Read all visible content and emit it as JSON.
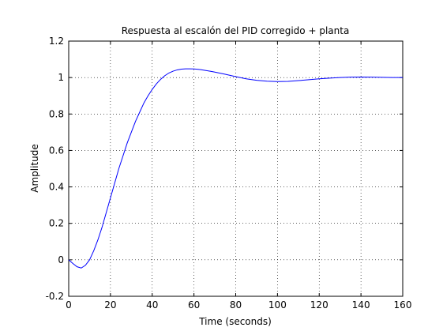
{
  "chart_data": {
    "type": "line",
    "title": "Respuesta al escalón del PID corregido + planta",
    "xlabel": "Time (seconds)",
    "ylabel": "Amplitude",
    "xlim": [
      0,
      160
    ],
    "ylim": [
      -0.2,
      1.2
    ],
    "grid": true,
    "grid_style": "dotted",
    "x_ticks": [
      "0",
      "20",
      "40",
      "60",
      "80",
      "100",
      "120",
      "140",
      "160"
    ],
    "y_ticks": [
      "-0.2",
      "0",
      "0.2",
      "0.4",
      "0.6",
      "0.8",
      "1",
      "1.2"
    ],
    "line_color": "#0000ff",
    "series": [
      {
        "x": [
          0,
          2,
          4,
          6,
          8,
          10,
          12,
          14,
          16,
          18,
          20,
          22,
          24,
          26,
          28,
          30,
          32,
          34,
          36,
          38,
          40,
          42,
          44,
          46,
          48,
          50,
          52,
          54,
          56,
          58,
          60,
          62,
          64,
          66,
          68,
          70,
          75,
          80,
          85,
          90,
          95,
          100,
          105,
          110,
          115,
          120,
          125,
          130,
          135,
          140,
          145,
          150,
          155,
          160
        ],
        "y": [
          0,
          -0.02,
          -0.038,
          -0.045,
          -0.03,
          0.0,
          0.05,
          0.11,
          0.18,
          0.26,
          0.34,
          0.42,
          0.5,
          0.57,
          0.64,
          0.7,
          0.76,
          0.81,
          0.86,
          0.9,
          0.935,
          0.965,
          0.99,
          1.01,
          1.025,
          1.035,
          1.042,
          1.046,
          1.048,
          1.048,
          1.047,
          1.045,
          1.042,
          1.038,
          1.034,
          1.03,
          1.018,
          1.005,
          0.993,
          0.985,
          0.98,
          0.978,
          0.979,
          0.983,
          0.988,
          0.993,
          0.997,
          1.0,
          1.002,
          1.003,
          1.002,
          1.001,
          1.0,
          1.0
        ]
      }
    ]
  }
}
